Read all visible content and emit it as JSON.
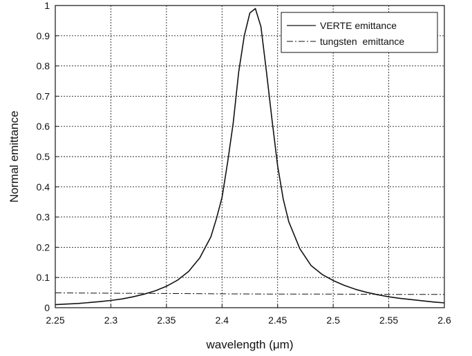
{
  "chart_data": {
    "type": "line",
    "title": "",
    "xlabel": "wavelength (μm)",
    "ylabel": "Normal emittance",
    "xlim": [
      2.25,
      2.6
    ],
    "ylim": [
      0,
      1
    ],
    "x_ticks": [
      "2.25",
      "2.3",
      "2.35",
      "2.4",
      "2.45",
      "2.5",
      "2.55",
      "2.6"
    ],
    "y_ticks": [
      "0",
      "0.1",
      "0.2",
      "0.3",
      "0.4",
      "0.5",
      "0.6",
      "0.7",
      "0.8",
      "0.9",
      "1"
    ],
    "grid": true,
    "legend_position": "top-right",
    "series": [
      {
        "name": "VERTE emittance",
        "style": "solid",
        "color": "#111111",
        "x": [
          2.25,
          2.26,
          2.27,
          2.28,
          2.29,
          2.3,
          2.31,
          2.32,
          2.33,
          2.34,
          2.35,
          2.36,
          2.37,
          2.38,
          2.39,
          2.395,
          2.4,
          2.405,
          2.41,
          2.415,
          2.42,
          2.425,
          2.43,
          2.435,
          2.44,
          2.445,
          2.45,
          2.455,
          2.46,
          2.47,
          2.48,
          2.49,
          2.5,
          2.51,
          2.52,
          2.53,
          2.54,
          2.55,
          2.56,
          2.57,
          2.58,
          2.59,
          2.6
        ],
        "y": [
          0.01,
          0.012,
          0.014,
          0.017,
          0.02,
          0.024,
          0.029,
          0.036,
          0.045,
          0.056,
          0.071,
          0.091,
          0.12,
          0.165,
          0.235,
          0.295,
          0.365,
          0.48,
          0.61,
          0.78,
          0.9,
          0.975,
          0.99,
          0.93,
          0.78,
          0.62,
          0.47,
          0.36,
          0.285,
          0.195,
          0.14,
          0.11,
          0.09,
          0.074,
          0.061,
          0.051,
          0.043,
          0.036,
          0.031,
          0.027,
          0.023,
          0.019,
          0.016
        ]
      },
      {
        "name": "tungsten  emittance",
        "style": "dashdot",
        "color": "#111111",
        "x": [
          2.25,
          2.3,
          2.35,
          2.4,
          2.45,
          2.5,
          2.55,
          2.6
        ],
        "y": [
          0.049,
          0.048,
          0.047,
          0.046,
          0.045,
          0.045,
          0.044,
          0.044
        ]
      }
    ]
  }
}
